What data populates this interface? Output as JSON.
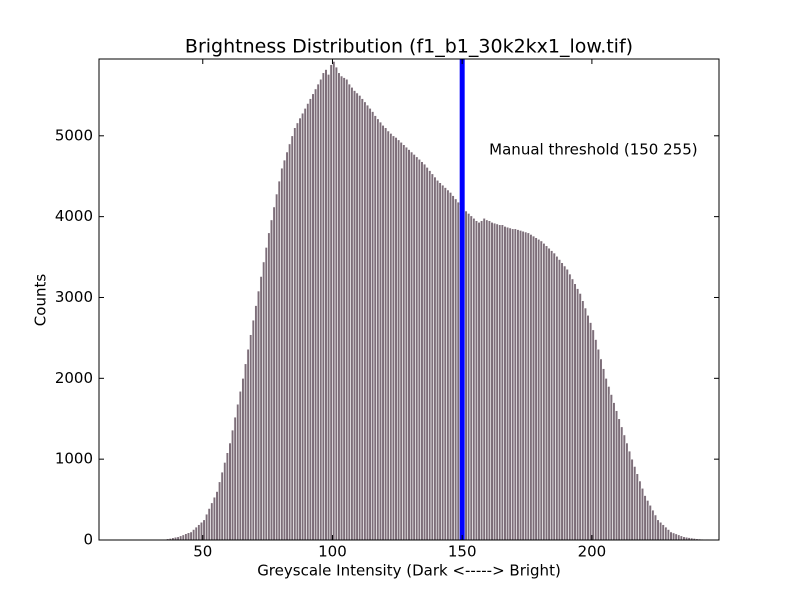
{
  "chart_data": {
    "type": "histogram",
    "title": "Brightness Distribution (f1_b1_30k2kx1_low.tif)",
    "x_label": "Greyscale Intensity (Dark <-----> Bright)",
    "y_label": "Counts",
    "annotation": "Manual threshold (150 255)",
    "threshold": 150,
    "threshold_color": "#0000ff",
    "color": "#7d6e79",
    "xlim": [
      10,
      249
    ],
    "ylim": [
      0,
      5950
    ],
    "xticks": [
      50,
      100,
      150,
      200
    ],
    "yticks": [
      0,
      1000,
      2000,
      3000,
      4000,
      5000
    ],
    "bins": [
      30,
      31,
      32,
      33,
      34,
      35,
      36,
      37,
      38,
      39,
      40,
      41,
      42,
      43,
      44,
      45,
      46,
      47,
      48,
      49,
      50,
      51,
      52,
      53,
      54,
      55,
      56,
      57,
      58,
      59,
      60,
      61,
      62,
      63,
      64,
      65,
      66,
      67,
      68,
      69,
      70,
      71,
      72,
      73,
      74,
      75,
      76,
      77,
      78,
      79,
      80,
      81,
      82,
      83,
      84,
      85,
      86,
      87,
      88,
      89,
      90,
      91,
      92,
      93,
      94,
      95,
      96,
      97,
      98,
      99,
      100,
      101,
      102,
      103,
      104,
      105,
      106,
      107,
      108,
      109,
      110,
      111,
      112,
      113,
      114,
      115,
      116,
      117,
      118,
      119,
      120,
      121,
      122,
      123,
      124,
      125,
      126,
      127,
      128,
      129,
      130,
      131,
      132,
      133,
      134,
      135,
      136,
      137,
      138,
      139,
      140,
      141,
      142,
      143,
      144,
      145,
      146,
      147,
      148,
      149,
      150,
      151,
      152,
      153,
      154,
      155,
      156,
      157,
      158,
      159,
      160,
      161,
      162,
      163,
      164,
      165,
      166,
      167,
      168,
      169,
      170,
      171,
      172,
      173,
      174,
      175,
      176,
      177,
      178,
      179,
      180,
      181,
      182,
      183,
      184,
      185,
      186,
      187,
      188,
      189,
      190,
      191,
      192,
      193,
      194,
      195,
      196,
      197,
      198,
      199,
      200,
      201,
      202,
      203,
      204,
      205,
      206,
      207,
      208,
      209,
      210,
      211,
      212,
      213,
      214,
      215,
      216,
      217,
      218,
      219,
      220,
      221,
      222,
      223,
      224,
      225,
      226,
      227,
      228,
      229,
      230,
      231,
      232,
      233,
      234,
      235,
      236,
      237,
      238,
      239,
      240,
      241,
      242,
      243,
      244,
      245,
      246
    ],
    "values": [
      0,
      0,
      2,
      3,
      6,
      10,
      15,
      20,
      28,
      35,
      40,
      52,
      64,
      78,
      90,
      100,
      130,
      160,
      190,
      220,
      250,
      320,
      390,
      460,
      530,
      600,
      720,
      840,
      960,
      1080,
      1200,
      1360,
      1520,
      1680,
      1840,
      2000,
      2180,
      2360,
      2540,
      2720,
      2900,
      3080,
      3260,
      3440,
      3620,
      3800,
      3960,
      4120,
      4280,
      4440,
      4600,
      4700,
      4800,
      4900,
      5000,
      5100,
      5160,
      5220,
      5280,
      5340,
      5400,
      5460,
      5520,
      5580,
      5640,
      5700,
      5780,
      5820,
      5760,
      5880,
      5920,
      5850,
      5780,
      5740,
      5720,
      5700,
      5640,
      5600,
      5560,
      5530,
      5500,
      5460,
      5420,
      5380,
      5340,
      5300,
      5250,
      5210,
      5170,
      5130,
      5100,
      5060,
      5030,
      5000,
      4980,
      4950,
      4920,
      4890,
      4860,
      4830,
      4800,
      4770,
      4740,
      4710,
      4680,
      4650,
      4610,
      4570,
      4530,
      4490,
      4450,
      4420,
      4390,
      4360,
      4330,
      4300,
      4260,
      4220,
      4180,
      4140,
      4100,
      4070,
      4040,
      4010,
      3980,
      3950,
      3930,
      3950,
      3980,
      3960,
      3950,
      3930,
      3920,
      3910,
      3900,
      3900,
      3880,
      3870,
      3860,
      3850,
      3850,
      3840,
      3830,
      3820,
      3810,
      3800,
      3780,
      3760,
      3740,
      3720,
      3700,
      3670,
      3640,
      3610,
      3580,
      3550,
      3510,
      3470,
      3430,
      3390,
      3350,
      3290,
      3230,
      3170,
      3110,
      3050,
      2960,
      2870,
      2780,
      2690,
      2600,
      2480,
      2360,
      2240,
      2120,
      2000,
      1900,
      1800,
      1700,
      1600,
      1500,
      1400,
      1300,
      1200,
      1100,
      1000,
      910,
      820,
      730,
      640,
      550,
      490,
      430,
      370,
      310,
      250,
      220,
      190,
      160,
      130,
      100,
      88,
      76,
      64,
      52,
      40,
      35,
      30,
      25,
      20,
      15,
      13,
      11,
      9,
      7,
      5
    ]
  }
}
